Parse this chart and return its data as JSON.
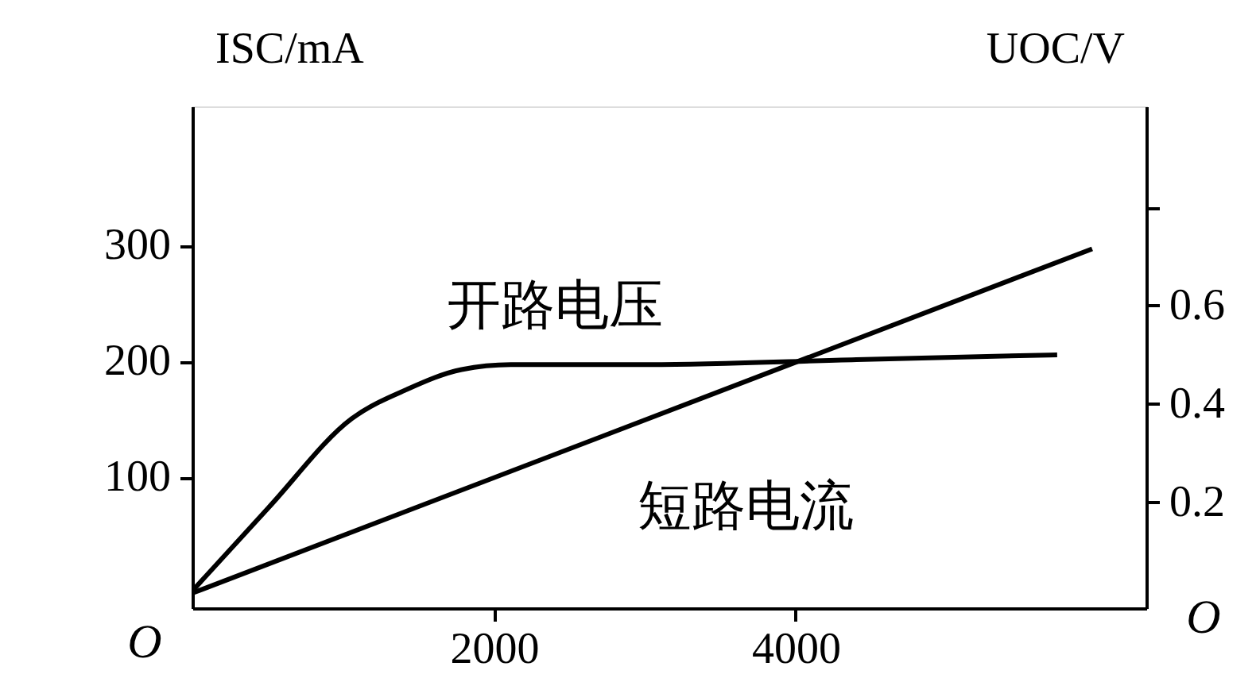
{
  "chart_data": {
    "type": "line",
    "xlim": [
      0,
      6325
    ],
    "xticks": [
      2000,
      4000
    ],
    "ylim": [
      -13,
      420
    ],
    "yticks": [
      100,
      200,
      300
    ],
    "y2lim": [
      -0.015,
      1.005
    ],
    "y2ticks": [
      0.2,
      0.4,
      0.6,
      {
        "value": 0.8,
        "label": null
      }
    ],
    "ylabel": "ISC/mA",
    "y2label": "UOC/V",
    "grid": false,
    "annotations": [
      "开路电压",
      "短路电流",
      "O",
      "O"
    ],
    "series": [
      {
        "color": "#000000",
        "x": [
          0,
          5966
        ],
        "values": [
          0,
          297
        ]
      },
      {
        "color": "#000000",
        "axis": "y2",
        "x": [
          0,
          507,
          1056,
          1425,
          1785,
          2112,
          3031,
          4403,
          5734
        ],
        "values": [
          0.02,
          0.19,
          0.37,
          0.43,
          0.47,
          0.48,
          0.48,
          0.49,
          0.5
        ]
      }
    ]
  }
}
